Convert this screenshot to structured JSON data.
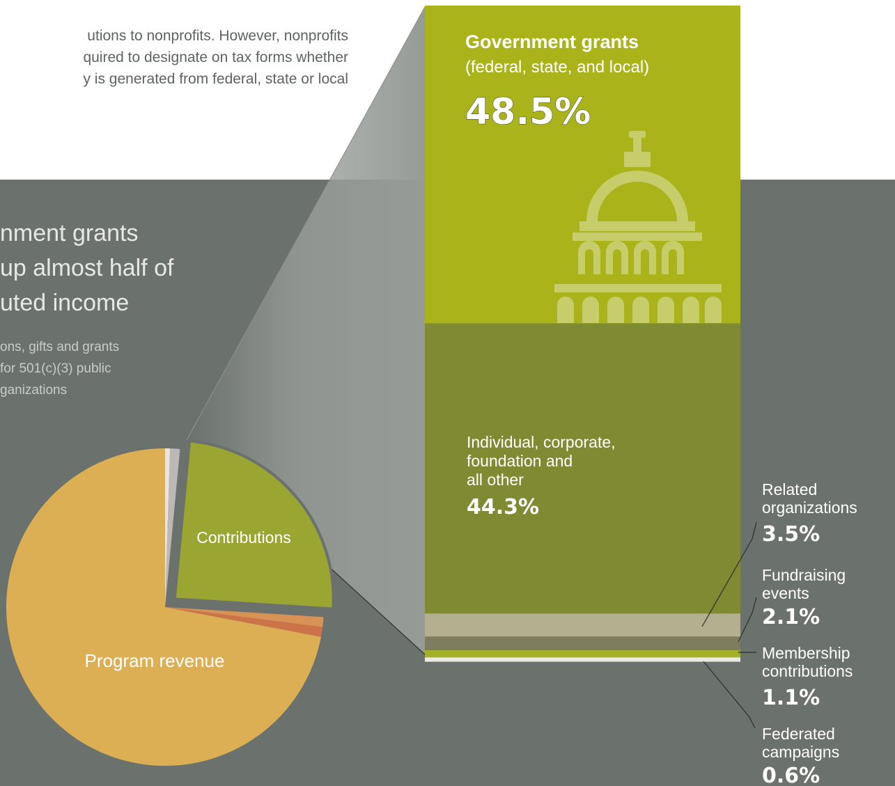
{
  "intro": {
    "lines": [
      "utions to nonprofits. However, nonprofits",
      "quired to designate on tax forms whether",
      "y is generated from federal, state or local"
    ]
  },
  "headline": {
    "lines": [
      "nment grants",
      "up almost half of",
      "uted income"
    ]
  },
  "subtitle": {
    "lines": [
      "ons, gifts and grants",
      "for 501(c)(3) public",
      "ganizations"
    ]
  },
  "colors": {
    "background_dark": "#6b716c",
    "program_revenue": "#dcaf55",
    "contributions": "#9aa631",
    "government": "#aab41a",
    "individual": "#808a32",
    "related": "#b3af8f",
    "fundraising": "#7f7d5f",
    "membership": "#a3b02a",
    "federated": "#eceae2"
  },
  "icons": {
    "capitol": "capitol-building-icon"
  },
  "chart_data": [
    {
      "type": "pie",
      "slices": [
        {
          "label": "Program revenue",
          "value": 72.0,
          "color": "#dcaf55"
        },
        {
          "label": "",
          "value": 1.0,
          "color": "#cd7349"
        },
        {
          "label": "",
          "value": 1.0,
          "color": "#d89256"
        },
        {
          "label": "Contributions",
          "value": 24.5,
          "color": "#9aa631",
          "exploded": true
        },
        {
          "label": "",
          "value": 1.0,
          "color": "#bdb8b3"
        },
        {
          "label": "",
          "value": 0.5,
          "color": "#e8e4df"
        }
      ],
      "start_angle_deg_from_north": 0,
      "direction": "clockwise-reversed"
    },
    {
      "type": "bar",
      "orientation": "stacked-vertical",
      "title": "Contributions",
      "unit": "%",
      "segments": [
        {
          "name": "Government grants",
          "detail": "(federal, state, and local)",
          "value": 48.5,
          "value_label": "48.5%",
          "color": "#aab41a"
        },
        {
          "name": "Individual, corporate, foundation and all other",
          "value": 44.3,
          "value_label": "44.3%",
          "color": "#808a32"
        },
        {
          "name": "Related organizations",
          "value": 3.5,
          "value_label": "3.5%",
          "color": "#b3af8f"
        },
        {
          "name": "Fundraising events",
          "value": 2.1,
          "value_label": "2.1%",
          "color": "#7f7d5f"
        },
        {
          "name": "Membership contributions",
          "value": 1.1,
          "value_label": "1.1%",
          "color": "#a3b02a"
        },
        {
          "name": "Federated campaigns",
          "value": 0.6,
          "value_label": "0.6%",
          "color": "#eceae2"
        }
      ]
    }
  ]
}
